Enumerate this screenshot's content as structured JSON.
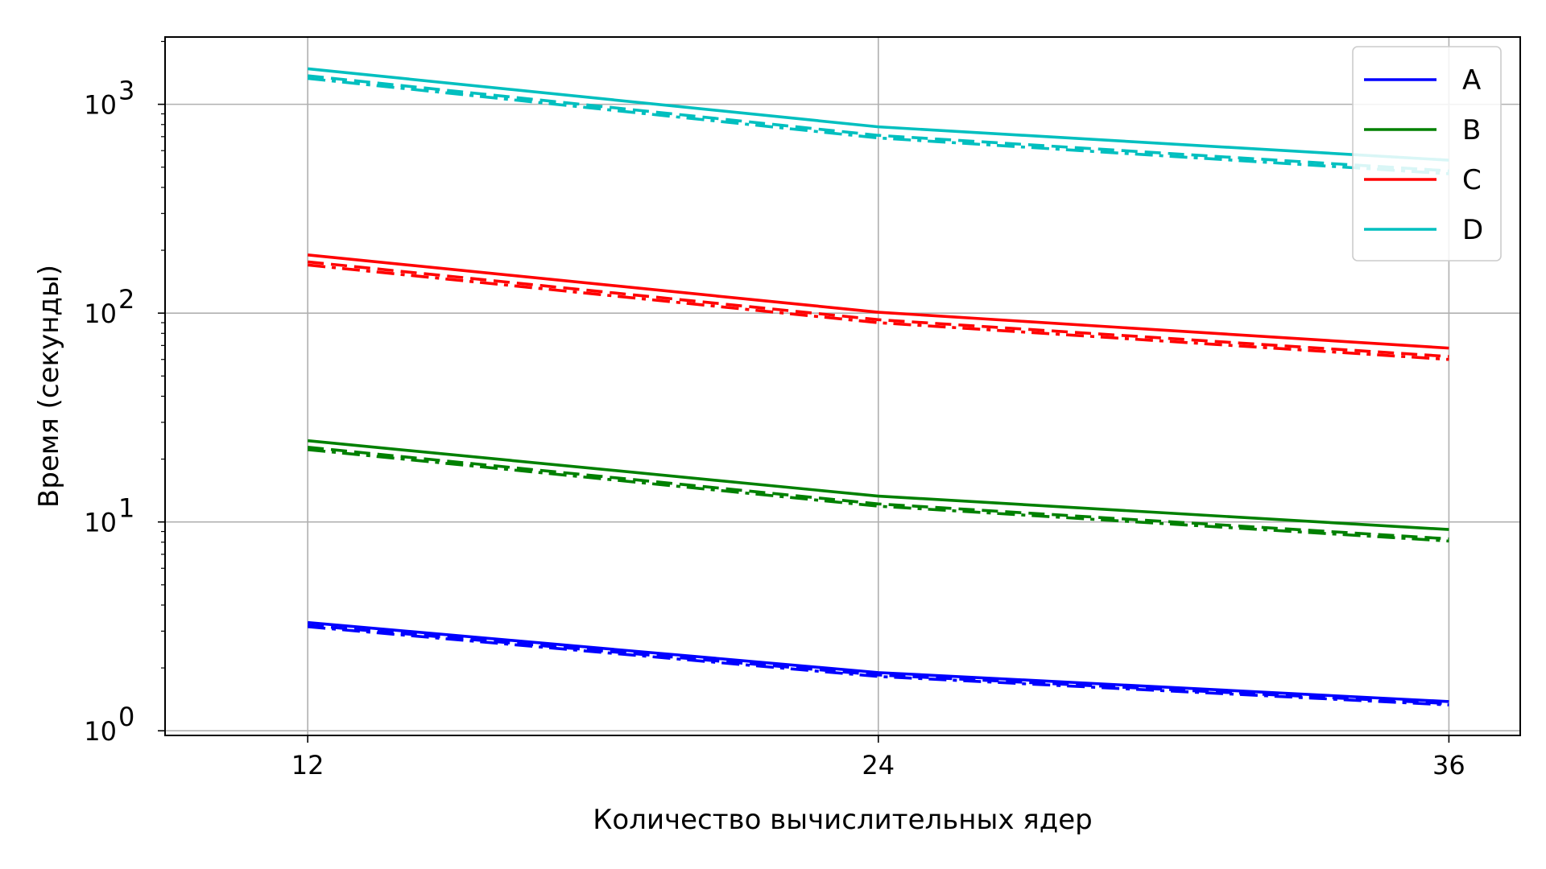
{
  "chart_data": {
    "type": "line",
    "title": "",
    "xlabel": "Количество вычислительных ядер",
    "ylabel": "Время (секунды)",
    "yscale": "log",
    "x": [
      12,
      24,
      36
    ],
    "xlim": [
      9,
      37.5
    ],
    "ylim": [
      0.95,
      2100
    ],
    "xticks": [
      "12",
      "24",
      "36"
    ],
    "yticks": [
      {
        "value": 1,
        "base": "10",
        "exp": "0"
      },
      {
        "value": 10,
        "base": "10",
        "exp": "1"
      },
      {
        "value": 100,
        "base": "10",
        "exp": "2"
      },
      {
        "value": 1000,
        "base": "10",
        "exp": "3"
      }
    ],
    "grid": true,
    "legend_position": "top-right",
    "series": [
      {
        "name": "A",
        "color": "#0000ff",
        "solid": [
          3.3,
          1.9,
          1.38
        ],
        "dashed": [
          3.2,
          1.85,
          1.35
        ],
        "dashdot": [
          3.15,
          1.82,
          1.33
        ]
      },
      {
        "name": "B",
        "color": "#008000",
        "solid": [
          24.5,
          13.3,
          9.2
        ],
        "dashed": [
          22.8,
          12.2,
          8.3
        ],
        "dashdot": [
          22.2,
          11.9,
          8.1
        ]
      },
      {
        "name": "C",
        "color": "#ff0000",
        "solid": [
          190,
          101,
          68
        ],
        "dashed": [
          176,
          93,
          62
        ],
        "dashdot": [
          170,
          90,
          60
        ]
      },
      {
        "name": "D",
        "color": "#00bfbf",
        "solid": [
          1480,
          780,
          540
        ],
        "dashed": [
          1370,
          710,
          480
        ],
        "dashdot": [
          1330,
          690,
          465
        ]
      }
    ]
  }
}
